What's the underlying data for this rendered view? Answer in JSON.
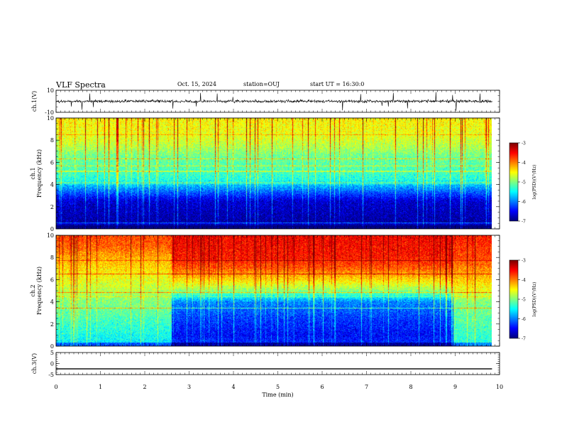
{
  "header": {
    "title": "VLF Spectra",
    "date": "Oct. 15, 2024",
    "station": "station=OUJ",
    "start": "start UT = 16:30:0"
  },
  "chart_data": [
    {
      "type": "line",
      "panel": "ch1-waveform",
      "ylabel": "ch.1(V)",
      "yticks": [
        "10",
        "-10"
      ],
      "ylim": [
        -10,
        10
      ],
      "description_values": {
        "baseline": 0,
        "noise_amplitude": 1.2
      }
    },
    {
      "type": "heatmap",
      "panel": "ch1-spectrogram",
      "ylabel_line1": "ch.1",
      "ylabel_line2": "Frequency (kHz)",
      "yticks": [
        "0",
        "2",
        "4",
        "6",
        "8",
        "10"
      ],
      "ylim": [
        0,
        10
      ],
      "xlim": [
        0,
        10
      ],
      "colorbar": {
        "label": "log(PSD)(V²/Hz)",
        "ticks": [
          "-3",
          "-4",
          "-5",
          "-6",
          "-7"
        ],
        "range": [
          -7,
          -3
        ]
      },
      "profile_kHz": [
        [
          0,
          -6.5
        ],
        [
          0.5,
          -6.9
        ],
        [
          1.5,
          -6.8
        ],
        [
          2.5,
          -6.7
        ],
        [
          3.3,
          -6.2
        ],
        [
          4.5,
          -5.4
        ],
        [
          5.5,
          -5.2
        ],
        [
          6.5,
          -5.1
        ],
        [
          7.5,
          -4.8
        ],
        [
          8.5,
          -4.6
        ],
        [
          10,
          -4.5
        ]
      ],
      "time_segments": []
    },
    {
      "type": "heatmap",
      "panel": "ch2-spectrogram",
      "ylabel_line1": "ch.2",
      "ylabel_line2": "Frequency (kHz)",
      "yticks": [
        "0",
        "2",
        "4",
        "6",
        "8",
        "10"
      ],
      "ylim": [
        0,
        10
      ],
      "xlim": [
        0,
        10
      ],
      "colorbar": {
        "label": "log(PSD)(V²/Hz)",
        "ticks": [
          "-3",
          "-4",
          "-5",
          "-6",
          "-7"
        ],
        "range": [
          -7,
          -3
        ]
      },
      "segments_min": [
        {
          "t0": 0,
          "t1": 2.6,
          "profile_kHz": [
            [
              0,
              -5.6
            ],
            [
              2,
              -5.3
            ],
            [
              4,
              -5.0
            ],
            [
              5,
              -4.8
            ],
            [
              6,
              -4.6
            ],
            [
              7,
              -4.4
            ],
            [
              8,
              -4.2
            ],
            [
              9,
              -3.9
            ],
            [
              10,
              -3.8
            ]
          ]
        },
        {
          "t0": 2.6,
          "t1": 8.95,
          "profile_kHz": [
            [
              0,
              -6.3
            ],
            [
              1,
              -6.5
            ],
            [
              2.5,
              -6.3
            ],
            [
              4,
              -6.0
            ],
            [
              5,
              -5.0
            ],
            [
              6,
              -4.4
            ],
            [
              7,
              -3.9
            ],
            [
              8,
              -3.6
            ],
            [
              10,
              -3.5
            ]
          ]
        },
        {
          "t0": 8.95,
          "t1": 9.83,
          "profile_kHz": [
            [
              0,
              -5.4
            ],
            [
              2,
              -5.2
            ],
            [
              4,
              -5.0
            ],
            [
              5,
              -4.6
            ],
            [
              6,
              -4.3
            ],
            [
              8,
              -3.8
            ],
            [
              10,
              -3.6
            ]
          ]
        }
      ]
    },
    {
      "type": "line",
      "panel": "ch3-waveform",
      "ylabel": "ch.3(V)",
      "yticks": [
        "5",
        "0",
        "-5"
      ],
      "ylim": [
        -5,
        5
      ],
      "x": [
        0,
        9.83
      ],
      "y": [
        -2.4,
        -2.4
      ]
    }
  ],
  "xaxis": {
    "label": "Time (min)",
    "ticks": [
      "0",
      "1",
      "2",
      "3",
      "4",
      "5",
      "6",
      "7",
      "8",
      "9",
      "10"
    ],
    "xlim": [
      0,
      10
    ],
    "data_end_min": 9.83
  }
}
